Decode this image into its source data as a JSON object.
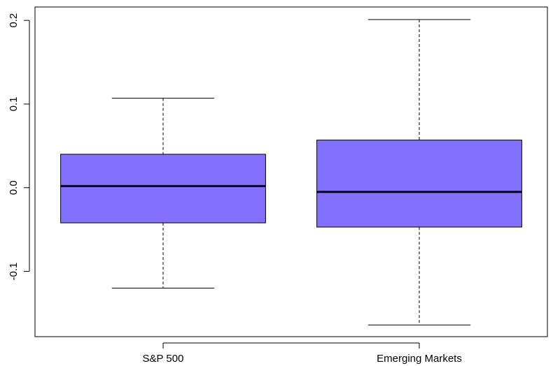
{
  "chart_data": {
    "type": "boxplot",
    "title": "",
    "xlabel": "",
    "ylabel": "",
    "categories": [
      "S&P 500",
      "Emerging Markets"
    ],
    "boxes": [
      {
        "category": "S&P 500",
        "whisker_low": -0.12,
        "q1": -0.042,
        "median": 0.002,
        "q3": 0.04,
        "whisker_high": 0.107
      },
      {
        "category": "Emerging Markets",
        "whisker_low": -0.164,
        "q1": -0.047,
        "median": -0.005,
        "q3": 0.057,
        "whisker_high": 0.201
      }
    ],
    "ylim": [
      -0.178,
      0.216
    ],
    "yticks": [
      -0.1,
      0.0,
      0.1,
      0.2
    ],
    "ytick_labels": [
      "-0.1",
      "0.0",
      "0.1",
      "0.2"
    ],
    "box_color": "#8470FF",
    "grid": false,
    "legend": "none"
  }
}
